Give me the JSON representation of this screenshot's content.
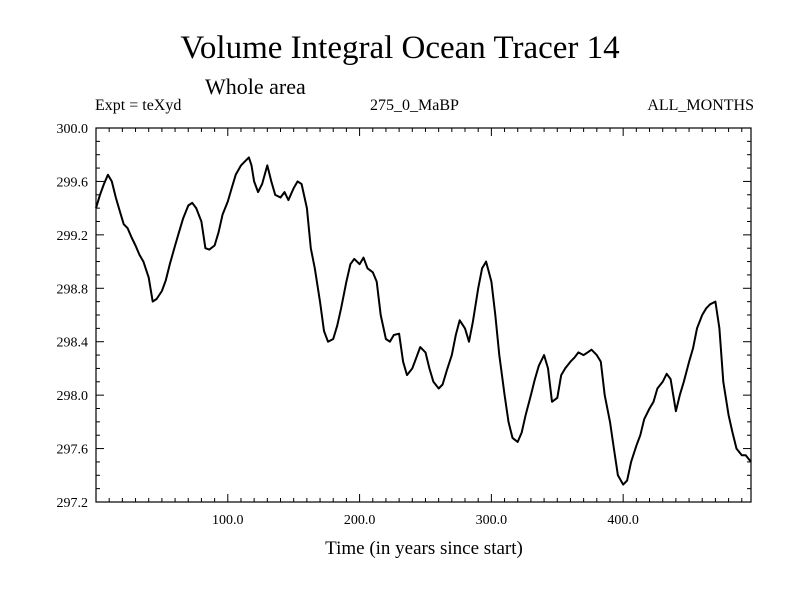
{
  "chart_data": {
    "type": "line",
    "title": "Volume Integral Ocean Tracer 14",
    "subtitle": "Whole area",
    "annotations": {
      "left": "Expt = teXyd",
      "center": "275_0_MaBP",
      "right": "ALL_MONTHS"
    },
    "xlabel": "Time (in years since start)",
    "ylabel": "",
    "xlim": [
      0,
      497
    ],
    "ylim": [
      297.2,
      300.0
    ],
    "x_ticks": [
      "100.0",
      "200.0",
      "300.0",
      "400.0"
    ],
    "y_ticks": [
      "297.2",
      "297.6",
      "298.0",
      "298.4",
      "298.8",
      "299.2",
      "299.6",
      "300.0"
    ],
    "grid": false,
    "series": [
      {
        "color": "#000000",
        "x": [
          0,
          3,
          6,
          9,
          12,
          15,
          18,
          21,
          24,
          27,
          30,
          33,
          36,
          40,
          43,
          46,
          50,
          53,
          56,
          60,
          63,
          66,
          70,
          73,
          76,
          80,
          83,
          86,
          90,
          93,
          96,
          100,
          103,
          106,
          110,
          113,
          116,
          118,
          120,
          123,
          126,
          130,
          133,
          136,
          140,
          143,
          146,
          150,
          153,
          156,
          160,
          163,
          166,
          170,
          173,
          176,
          180,
          183,
          186,
          190,
          193,
          196,
          200,
          203,
          206,
          210,
          213,
          216,
          220,
          223,
          226,
          230,
          233,
          236,
          240,
          243,
          246,
          250,
          253,
          256,
          260,
          263,
          266,
          270,
          273,
          276,
          280,
          283,
          286,
          290,
          293,
          296,
          300,
          303,
          306,
          310,
          313,
          316,
          320,
          323,
          326,
          330,
          333,
          336,
          340,
          343,
          346,
          350,
          353,
          356,
          360,
          363,
          366,
          370,
          373,
          376,
          380,
          383,
          386,
          390,
          393,
          396,
          400,
          403,
          406,
          410,
          413,
          416,
          420,
          423,
          426,
          430,
          433,
          436,
          440,
          443,
          446,
          450,
          453,
          456,
          460,
          463,
          466,
          470,
          473,
          476,
          480,
          483,
          486,
          490,
          493,
          497
        ],
        "values": [
          299.4,
          299.5,
          299.58,
          299.65,
          299.6,
          299.48,
          299.38,
          299.28,
          299.25,
          299.18,
          299.12,
          299.05,
          299.0,
          298.88,
          298.7,
          298.72,
          298.78,
          298.86,
          298.98,
          299.12,
          299.22,
          299.32,
          299.42,
          299.44,
          299.4,
          299.3,
          299.1,
          299.09,
          299.12,
          299.22,
          299.35,
          299.45,
          299.55,
          299.65,
          299.72,
          299.75,
          299.78,
          299.72,
          299.6,
          299.52,
          299.58,
          299.72,
          299.6,
          299.5,
          299.48,
          299.52,
          299.46,
          299.55,
          299.6,
          299.58,
          299.4,
          299.1,
          298.95,
          298.7,
          298.48,
          298.4,
          298.42,
          298.52,
          298.65,
          298.85,
          298.98,
          299.02,
          298.98,
          299.03,
          298.95,
          298.92,
          298.85,
          298.6,
          298.42,
          298.4,
          298.45,
          298.46,
          298.25,
          298.15,
          298.2,
          298.28,
          298.36,
          298.32,
          298.2,
          298.1,
          298.05,
          298.08,
          298.18,
          298.3,
          298.45,
          298.56,
          298.5,
          298.4,
          298.55,
          298.8,
          298.95,
          299.0,
          298.85,
          298.6,
          298.3,
          298.0,
          297.8,
          297.68,
          297.65,
          297.72,
          297.85,
          298.0,
          298.12,
          298.22,
          298.3,
          298.2,
          297.95,
          297.98,
          298.15,
          298.2,
          298.25,
          298.28,
          298.32,
          298.3,
          298.32,
          298.34,
          298.3,
          298.25,
          298.0,
          297.8,
          297.6,
          297.4,
          297.33,
          297.36,
          297.5,
          297.62,
          297.7,
          297.82,
          297.9,
          297.95,
          298.05,
          298.1,
          298.16,
          298.12,
          297.88,
          298.0,
          298.1,
          298.25,
          298.35,
          298.5,
          298.6,
          298.65,
          298.68,
          298.7,
          298.5,
          298.1,
          297.85,
          297.72,
          297.6,
          297.55,
          297.55,
          297.5
        ]
      }
    ]
  }
}
